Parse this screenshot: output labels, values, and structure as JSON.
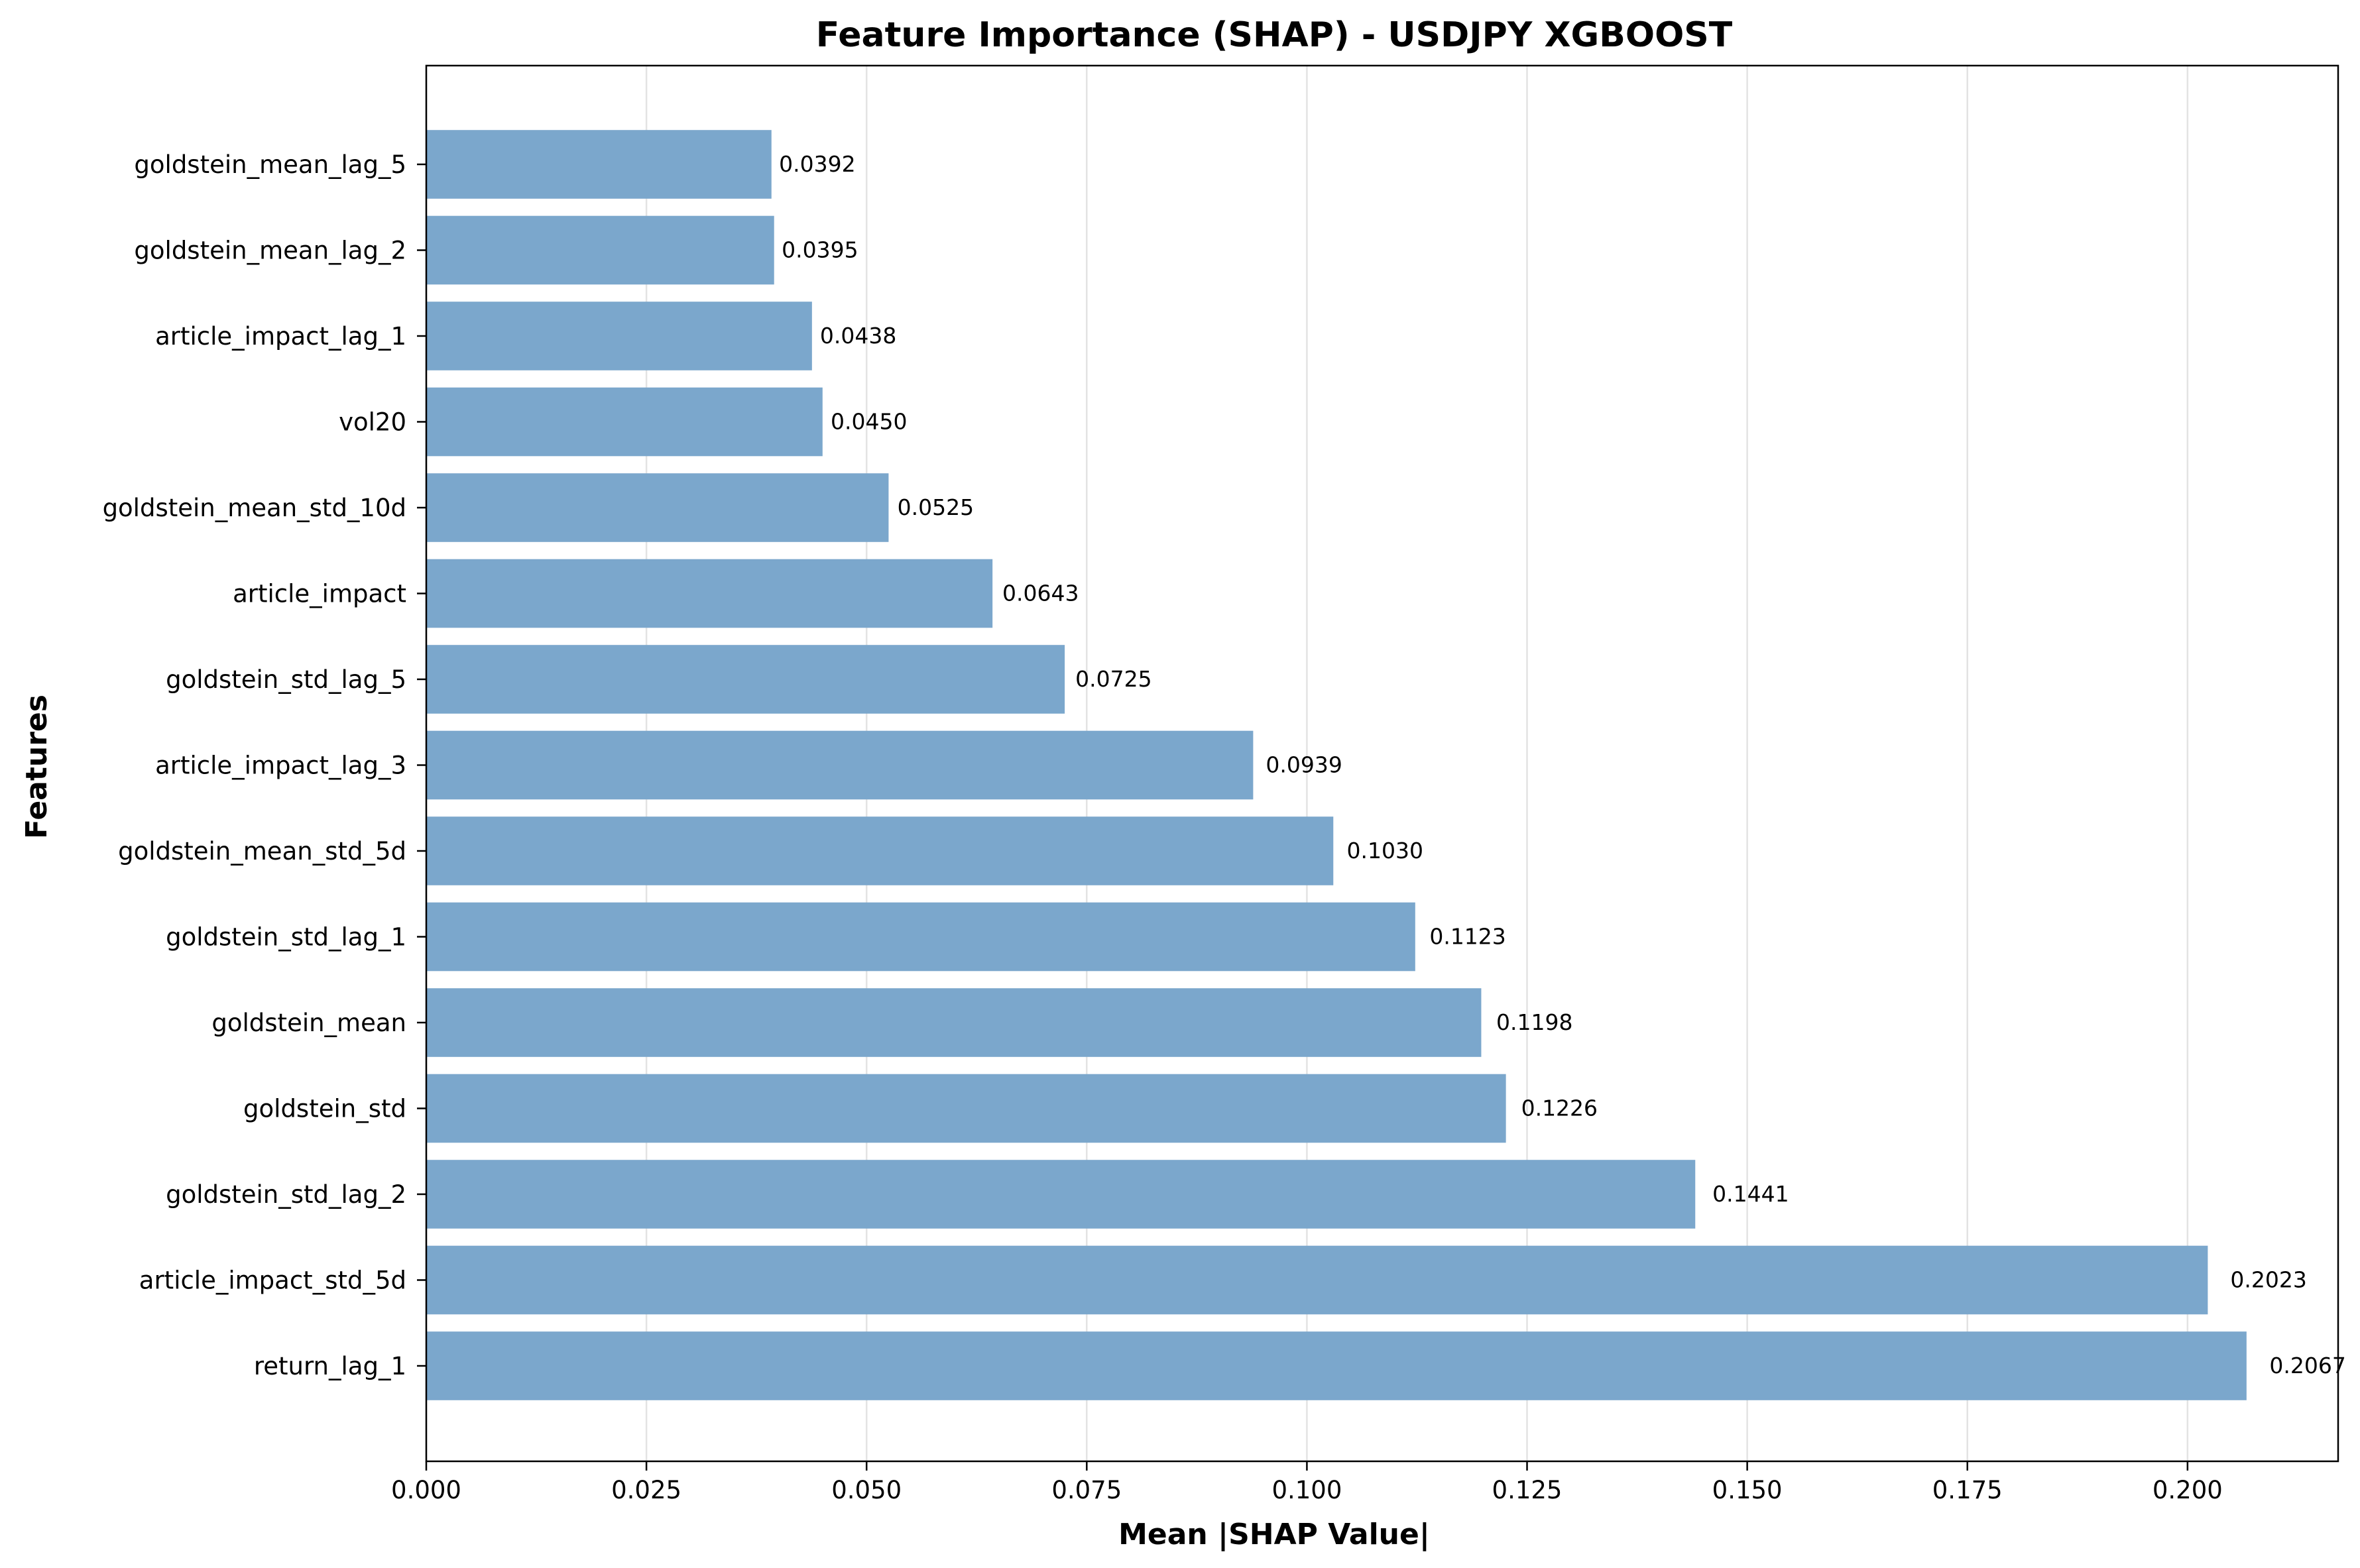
{
  "chart_data": {
    "type": "bar",
    "orientation": "horizontal",
    "title": "Feature Importance (SHAP) - USDJPY XGBOOST",
    "xlabel": "Mean |SHAP Value|",
    "ylabel": "Features",
    "xlim": [
      0,
      0.2171
    ],
    "xticks": [
      "0.000",
      "0.025",
      "0.050",
      "0.075",
      "0.100",
      "0.125",
      "0.150",
      "0.175",
      "0.200"
    ],
    "xtick_values": [
      0,
      0.025,
      0.05,
      0.075,
      0.1,
      0.125,
      0.15,
      0.175,
      0.2
    ],
    "grid": "vertical",
    "bar_color": "#7ba7cc",
    "categories": [
      "goldstein_mean_lag_5",
      "goldstein_mean_lag_2",
      "article_impact_lag_1",
      "vol20",
      "goldstein_mean_std_10d",
      "article_impact",
      "goldstein_std_lag_5",
      "article_impact_lag_3",
      "goldstein_mean_std_5d",
      "goldstein_std_lag_1",
      "goldstein_mean",
      "goldstein_std",
      "goldstein_std_lag_2",
      "article_impact_std_5d",
      "return_lag_1"
    ],
    "values": [
      0.0392,
      0.0395,
      0.0438,
      0.045,
      0.0525,
      0.0643,
      0.0725,
      0.0939,
      0.103,
      0.1123,
      0.1198,
      0.1226,
      0.1441,
      0.2023,
      0.2067
    ],
    "value_labels": [
      "0.0392",
      "0.0395",
      "0.0438",
      "0.0450",
      "0.0525",
      "0.0643",
      "0.0725",
      "0.0939",
      "0.1030",
      "0.1123",
      "0.1198",
      "0.1226",
      "0.1441",
      "0.2023",
      "0.2067"
    ]
  }
}
